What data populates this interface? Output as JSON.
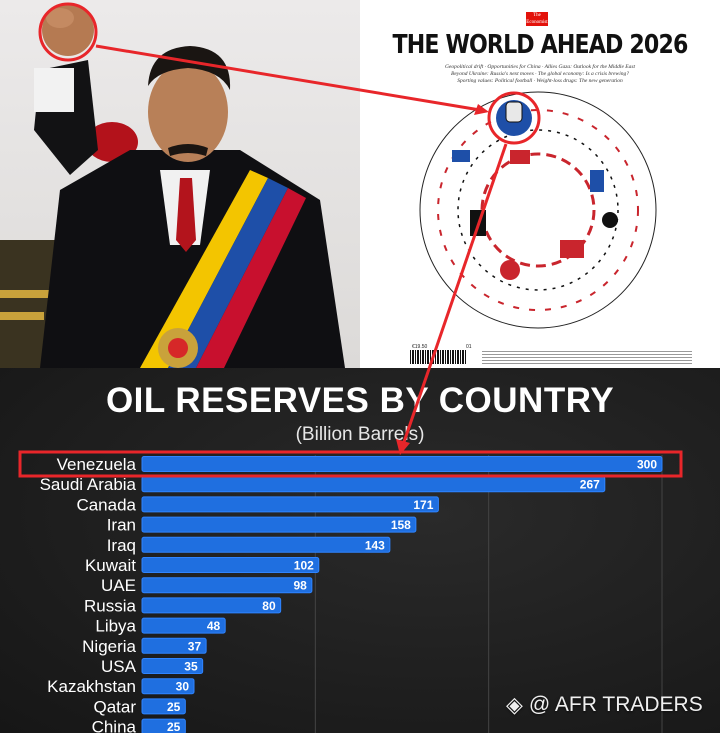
{
  "cover": {
    "brand": "The Economist",
    "title": "THE WORLD AHEAD 2026",
    "subtitle": "Geopolitical drift · Opportunities for China · Allies Gaza: Outlook for the Middle East\nBeyond Ukraine: Russia's next moves · The global economy: Is a crisis brewing?\nSporting values: Political football · Weight-loss drugs: The new generation",
    "price": "€19.50",
    "issue": "01"
  },
  "watermark": {
    "text": "@ AFR TRADERS",
    "icon": "binance-logo-icon"
  },
  "colors": {
    "bar": "#1f6fe0",
    "bar_edge": "#2f84ff",
    "highlight": "#e8262a",
    "label": "#ffffff",
    "grid": "#444444"
  },
  "chart_data": {
    "type": "bar",
    "orientation": "horizontal",
    "title": "OIL RESERVES BY COUNTRY",
    "subtitle": "(Billion Barrels)",
    "categories": [
      "Venezuela",
      "Saudi Arabia",
      "Canada",
      "Iran",
      "Iraq",
      "Kuwait",
      "UAE",
      "Russia",
      "Libya",
      "Nigeria",
      "USA",
      "Kazakhstan",
      "Qatar",
      "China"
    ],
    "values": [
      300,
      267,
      171,
      158,
      143,
      102,
      98,
      80,
      48,
      37,
      35,
      30,
      25,
      25
    ],
    "highlighted": "Venezuela",
    "xlim": [
      0,
      300
    ],
    "grid": true,
    "data_labels": true
  }
}
